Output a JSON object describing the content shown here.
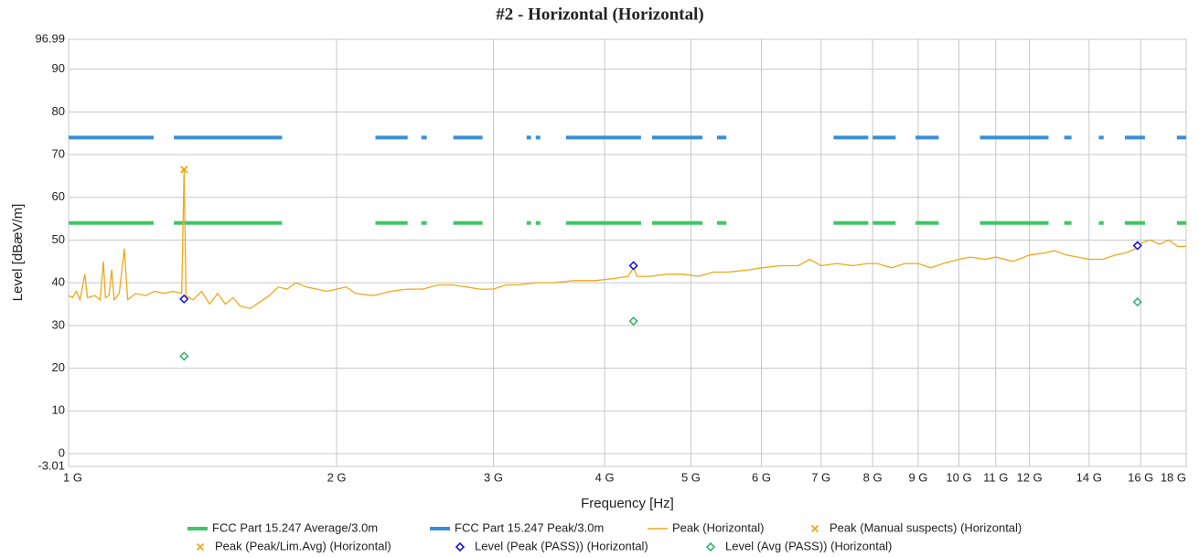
{
  "chart_data": {
    "type": "line",
    "title": "#2 - Horizontal (Horizontal)",
    "xlabel": "Frequency [Hz]",
    "ylabel": "Level [dBæV/m]",
    "xscale": "log",
    "grid": true,
    "legend": "bottom",
    "xlim": [
      1000000000.0,
      18000000000.0
    ],
    "ylim": [
      -3.01,
      96.99
    ],
    "xticks": [
      {
        "value": 1000000000.0,
        "label": "1 G"
      },
      {
        "value": 2000000000.0,
        "label": "2 G"
      },
      {
        "value": 3000000000.0,
        "label": "3 G"
      },
      {
        "value": 4000000000.0,
        "label": "4 G"
      },
      {
        "value": 5000000000.0,
        "label": "5 G"
      },
      {
        "value": 6000000000.0,
        "label": "6 G"
      },
      {
        "value": 7000000000.0,
        "label": "7 G"
      },
      {
        "value": 8000000000.0,
        "label": "8 G"
      },
      {
        "value": 9000000000.0,
        "label": "9 G"
      },
      {
        "value": 10000000000.0,
        "label": "10 G"
      },
      {
        "value": 11000000000.0,
        "label": "11 G"
      },
      {
        "value": 12000000000.0,
        "label": "12 G"
      },
      {
        "value": 14000000000.0,
        "label": "14 G"
      },
      {
        "value": 16000000000.0,
        "label": "16 G"
      },
      {
        "value": 18000000000.0,
        "label": "18 G"
      }
    ],
    "yticks": [
      -3.01,
      0,
      10,
      20,
      30,
      40,
      50,
      60,
      70,
      80,
      90,
      96.99
    ],
    "series": [
      {
        "name": "FCC Part 15.247 Average/3.0m",
        "color": "#3cc864",
        "style": "thick-line",
        "x": [
          1000000000.0,
          1246000000.0,
          null,
          1313000000.0,
          1737000000.0,
          null,
          2211000000.0,
          2403000000.0,
          null,
          2490000000.0,
          2525000000.0,
          null,
          2704000000.0,
          2917000000.0,
          null,
          3269000000.0,
          3307000000.0,
          null,
          3347000000.0,
          3387000000.0,
          null,
          3619000000.0,
          4395000000.0,
          null,
          4522000000.0,
          5152000000.0,
          null,
          5350000000.0,
          5480000000.0,
          null,
          7230000000.0,
          7910000000.0,
          null,
          8000000000.0,
          8490000000.0,
          null,
          8940000000.0,
          9490000000.0,
          null,
          10560000000.0,
          12610000000.0,
          null,
          13130000000.0,
          13380000000.0,
          null,
          14360000000.0,
          14540000000.0,
          null,
          15360000000.0,
          16180000000.0,
          null,
          17570000000.0,
          18000000000.0
        ],
        "values": [
          54,
          54,
          null,
          54,
          54,
          null,
          54,
          54,
          null,
          54,
          54,
          null,
          54,
          54,
          null,
          54,
          54,
          null,
          54,
          54,
          null,
          54,
          54,
          null,
          54,
          54,
          null,
          54,
          54,
          null,
          54,
          54,
          null,
          54,
          54,
          null,
          54,
          54,
          null,
          54,
          54,
          null,
          54,
          54,
          null,
          54,
          54,
          null,
          54,
          54,
          null,
          54,
          54
        ]
      },
      {
        "name": "FCC Part 15.247 Peak/3.0m",
        "color": "#3a8fd8",
        "style": "thick-line",
        "x": [
          1000000000.0,
          1246000000.0,
          null,
          1313000000.0,
          1737000000.0,
          null,
          2211000000.0,
          2403000000.0,
          null,
          2490000000.0,
          2525000000.0,
          null,
          2704000000.0,
          2917000000.0,
          null,
          3269000000.0,
          3307000000.0,
          null,
          3347000000.0,
          3387000000.0,
          null,
          3619000000.0,
          4395000000.0,
          null,
          4522000000.0,
          5152000000.0,
          null,
          5350000000.0,
          5480000000.0,
          null,
          7230000000.0,
          7910000000.0,
          null,
          8000000000.0,
          8490000000.0,
          null,
          8940000000.0,
          9490000000.0,
          null,
          10560000000.0,
          12610000000.0,
          null,
          13130000000.0,
          13380000000.0,
          null,
          14360000000.0,
          14540000000.0,
          null,
          15360000000.0,
          16180000000.0,
          null,
          17570000000.0,
          18000000000.0
        ],
        "values": [
          74,
          74,
          null,
          74,
          74,
          null,
          74,
          74,
          null,
          74,
          74,
          null,
          74,
          74,
          null,
          74,
          74,
          null,
          74,
          74,
          null,
          74,
          74,
          null,
          74,
          74,
          null,
          74,
          74,
          null,
          74,
          74,
          null,
          74,
          74,
          null,
          74,
          74,
          null,
          74,
          74,
          null,
          74,
          74,
          null,
          74,
          74,
          null,
          74,
          74,
          null,
          74,
          74
        ]
      },
      {
        "name": "Peak (Horizontal)",
        "color": "#f0a818",
        "style": "line",
        "x": [
          1000000000.0,
          1010000000.0,
          1020000000.0,
          1030000000.0,
          1043000000.0,
          1050000000.0,
          1070000000.0,
          1085000000.0,
          1094000000.0,
          1100000000.0,
          1110000000.0,
          1118000000.0,
          1125000000.0,
          1140000000.0,
          1155000000.0,
          1165000000.0,
          1190000000.0,
          1220000000.0,
          1250000000.0,
          1280000000.0,
          1310000000.0,
          1340000000.0,
          1348000000.0,
          1355000000.0,
          1380000000.0,
          1410000000.0,
          1440000000.0,
          1470000000.0,
          1500000000.0,
          1530000000.0,
          1560000000.0,
          1600000000.0,
          1640000000.0,
          1680000000.0,
          1720000000.0,
          1760000000.0,
          1800000000.0,
          1850000000.0,
          1900000000.0,
          1950000000.0,
          2000000000.0,
          2050000000.0,
          2100000000.0,
          2200000000.0,
          2300000000.0,
          2400000000.0,
          2500000000.0,
          2600000000.0,
          2700000000.0,
          2800000000.0,
          2900000000.0,
          3000000000.0,
          3100000000.0,
          3200000000.0,
          3350000000.0,
          3500000000.0,
          3700000000.0,
          3900000000.0,
          4100000000.0,
          4250000000.0,
          4310000000.0,
          4350000000.0,
          4500000000.0,
          4700000000.0,
          4900000000.0,
          5100000000.0,
          5300000000.0,
          5500000000.0,
          5800000000.0,
          6000000000.0,
          6300000000.0,
          6600000000.0,
          6800000000.0,
          7000000000.0,
          7300000000.0,
          7600000000.0,
          7900000000.0,
          8100000000.0,
          8400000000.0,
          8700000000.0,
          9000000000.0,
          9300000000.0,
          9600000000.0,
          10000000000.0,
          10300000000.0,
          10700000000.0,
          11000000000.0,
          11500000000.0,
          12000000000.0,
          12500000000.0,
          12800000000.0,
          13200000000.0,
          13600000000.0,
          14000000000.0,
          14500000000.0,
          15000000000.0,
          15400000000.0,
          15800000000.0,
          16100000000.0,
          16400000000.0,
          16800000000.0,
          17200000000.0,
          17600000000.0,
          18000000000.0
        ],
        "values": [
          37,
          36.5,
          38,
          36,
          42,
          36.5,
          37,
          36,
          45,
          36.5,
          37,
          43,
          36,
          37.5,
          48,
          36,
          37.5,
          37,
          38,
          37.5,
          38,
          37.5,
          66.5,
          37,
          36,
          38,
          35,
          37.5,
          35,
          36.5,
          34.5,
          34,
          35.5,
          37,
          39,
          38.5,
          40,
          39,
          38.5,
          38,
          38.5,
          39,
          37.5,
          37,
          38,
          38.5,
          38.5,
          39.5,
          39.5,
          39,
          38.5,
          38.5,
          39.5,
          39.5,
          40,
          40,
          40.5,
          40.5,
          41,
          41.5,
          43.5,
          41.5,
          41.5,
          42,
          42,
          41.5,
          42.5,
          42.5,
          43,
          43.5,
          44,
          44,
          45.5,
          44,
          44.5,
          44,
          44.5,
          44.5,
          43.5,
          44.5,
          44.5,
          43.5,
          44.5,
          45.5,
          46,
          45.5,
          46,
          45,
          46.5,
          47,
          47.5,
          46.5,
          46,
          45.5,
          45.5,
          46.5,
          47,
          48,
          49.5,
          50,
          49,
          50,
          48.5,
          48.5
        ]
      },
      {
        "name": "Peak (Manual suspects) (Horizontal)",
        "color": "#f0a818",
        "style": "x",
        "x": [
          1348000000.0
        ],
        "values": [
          66.5
        ]
      },
      {
        "name": "Peak (Peak/Lim.Avg) (Horizontal)",
        "color": "#f0a818",
        "style": "x",
        "x": [
          1348000000.0
        ],
        "values": [
          66.5
        ]
      },
      {
        "name": "Level (Peak (PASS)) (Horizontal)",
        "color": "#1a1ad0",
        "style": "diamond",
        "x": [
          1348000000.0,
          4310000000.0,
          15870000000.0
        ],
        "values": [
          36.2,
          44,
          48.7
        ]
      },
      {
        "name": "Level (Avg (PASS)) (Horizontal)",
        "color": "#3cb371",
        "style": "diamond",
        "x": [
          1348000000.0,
          4310000000.0,
          15870000000.0
        ],
        "values": [
          22.8,
          31,
          35.5
        ]
      }
    ]
  }
}
